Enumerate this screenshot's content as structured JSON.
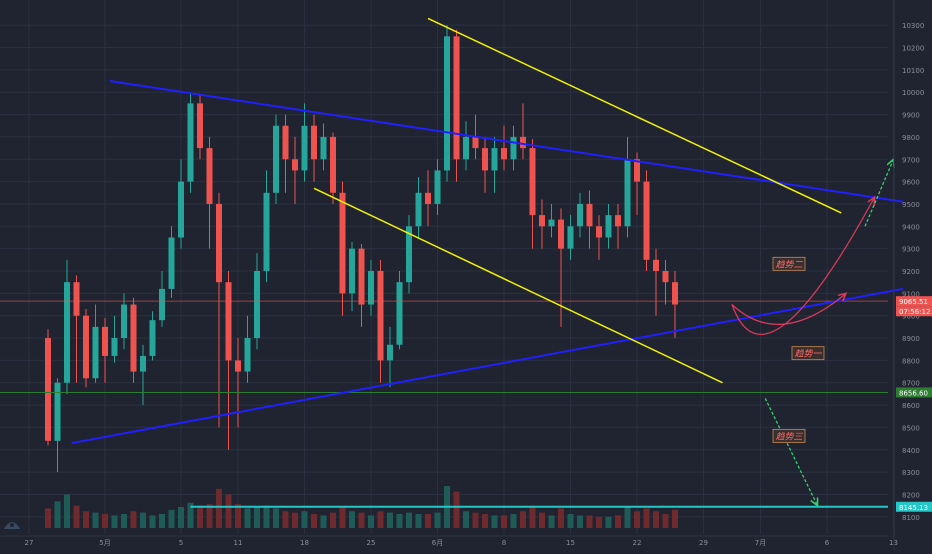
{
  "chart_data": {
    "type": "candlestick",
    "title": "",
    "colors": {
      "background": "#1f2430",
      "grid": "#2b3040",
      "axis_text": "#8a8f9c",
      "up": "#26a69a",
      "down": "#ef5350",
      "volume_up": "#1f5c58",
      "volume_down": "#6e2a2c",
      "blue_trend": "#2020ff",
      "yellow_channel": "#f2f200",
      "green_level": "#2e7d32",
      "cyan_level": "#26c6c6",
      "red_level": "#ef5350",
      "projection_red": "#d63a5a",
      "projection_green": "#32d36a"
    },
    "y_axis": {
      "min": 8050,
      "max": 10350,
      "ticks": [
        10300,
        10200,
        10100,
        10000,
        9900,
        9800,
        9700,
        9600,
        9500,
        9400,
        9300,
        9200,
        9100,
        9000,
        8900,
        8800,
        8700,
        8600,
        8500,
        8400,
        8300,
        8200,
        8100
      ]
    },
    "x_axis": {
      "labels": [
        {
          "label": "27",
          "idx": -2
        },
        {
          "label": "5月",
          "idx": 6
        },
        {
          "label": "5",
          "idx": 14
        },
        {
          "label": "11",
          "idx": 20
        },
        {
          "label": "18",
          "idx": 27
        },
        {
          "label": "25",
          "idx": 34
        },
        {
          "label": "6月",
          "idx": 41
        },
        {
          "label": "8",
          "idx": 48
        },
        {
          "label": "15",
          "idx": 55
        },
        {
          "label": "22",
          "idx": 62
        },
        {
          "label": "29",
          "idx": 69
        },
        {
          "label": "7月",
          "idx": 75
        },
        {
          "label": "6",
          "idx": 82
        },
        {
          "label": "13",
          "idx": 89
        }
      ]
    },
    "price_tags": [
      {
        "label": "9065.51",
        "value": 9065,
        "color": "#ef5350"
      },
      {
        "label": "07:56:12",
        "value": 9020,
        "color": "#ef5350"
      },
      {
        "label": "8656.60",
        "value": 8656.6,
        "color": "#2e7d32"
      },
      {
        "label": "8145.13",
        "value": 8145,
        "color": "#26c6c6"
      }
    ],
    "horizontal_levels": [
      {
        "name": "red",
        "value": 9065
      },
      {
        "name": "green",
        "value": 8656.6
      },
      {
        "name": "cyan",
        "value": 8145,
        "start_idx": 15
      }
    ],
    "trend_lines": [
      {
        "name": "upper-blue",
        "color": "blue",
        "points": [
          [
            6.5,
            10050
          ],
          [
            90,
            9510
          ]
        ]
      },
      {
        "name": "lower-blue",
        "color": "blue",
        "points": [
          [
            2.5,
            8430
          ],
          [
            90,
            9120
          ]
        ]
      },
      {
        "name": "upper-yellow",
        "color": "yellow",
        "points": [
          [
            40,
            10330
          ],
          [
            83.5,
            9460
          ]
        ]
      },
      {
        "name": "lower-yellow",
        "color": "yellow",
        "points": [
          [
            28,
            9570
          ],
          [
            71,
            8700
          ]
        ]
      }
    ],
    "projections": [
      {
        "name": "trend-1",
        "label": "趋势一",
        "color": "red",
        "points": [
          [
            72,
            9050
          ],
          [
            77,
            8850
          ],
          [
            84,
            9100
          ]
        ],
        "label_at": [
          80,
          8830
        ]
      },
      {
        "name": "trend-2",
        "label": "趋势二",
        "color": "red",
        "points": [
          [
            72,
            9050
          ],
          [
            75.5,
            8630
          ],
          [
            87,
            9530
          ]
        ],
        "label_at": [
          78,
          9230
        ]
      },
      {
        "name": "trend-3",
        "label": "趋势三",
        "color": "green",
        "points": [
          [
            75.5,
            8630
          ],
          [
            81,
            8150
          ]
        ],
        "label_at": [
          78,
          8460
        ]
      },
      {
        "name": "trend-4",
        "label": "",
        "color": "green",
        "points": [
          [
            86,
            9400
          ],
          [
            89,
            9700
          ]
        ],
        "label_at": null
      }
    ],
    "candles": [
      [
        8900,
        8440,
        8940,
        8420,
        70
      ],
      [
        8440,
        8700,
        8720,
        8300,
        95
      ],
      [
        8700,
        9150,
        9250,
        8650,
        120
      ],
      [
        9150,
        9000,
        9180,
        8700,
        80
      ],
      [
        9000,
        8720,
        9030,
        8680,
        60
      ],
      [
        8720,
        8950,
        9050,
        8700,
        55
      ],
      [
        8950,
        8820,
        8990,
        8700,
        50
      ],
      [
        8820,
        8900,
        9000,
        8790,
        45
      ],
      [
        8900,
        9050,
        9100,
        8850,
        50
      ],
      [
        9050,
        8750,
        9080,
        8700,
        60
      ],
      [
        8750,
        8820,
        8870,
        8600,
        55
      ],
      [
        8820,
        8980,
        9020,
        8800,
        45
      ],
      [
        8980,
        9120,
        9200,
        8950,
        50
      ],
      [
        9120,
        9350,
        9400,
        9080,
        65
      ],
      [
        9350,
        9600,
        9700,
        9300,
        75
      ],
      [
        9600,
        9950,
        10000,
        9550,
        90
      ],
      [
        9950,
        9750,
        9990,
        9700,
        80
      ],
      [
        9750,
        9500,
        9800,
        9300,
        85
      ],
      [
        9500,
        9150,
        9550,
        8500,
        140
      ],
      [
        9150,
        8800,
        9200,
        8400,
        120
      ],
      [
        8800,
        8750,
        8900,
        8500,
        85
      ],
      [
        8750,
        8900,
        9000,
        8700,
        70
      ],
      [
        8900,
        9200,
        9280,
        8850,
        75
      ],
      [
        9200,
        9550,
        9650,
        9150,
        80
      ],
      [
        9550,
        9850,
        9900,
        9500,
        70
      ],
      [
        9850,
        9700,
        9900,
        9550,
        60
      ],
      [
        9700,
        9650,
        9800,
        9500,
        55
      ],
      [
        9650,
        9850,
        9950,
        9600,
        60
      ],
      [
        9850,
        9700,
        9900,
        9600,
        50
      ],
      [
        9700,
        9800,
        9860,
        9650,
        45
      ],
      [
        9800,
        9550,
        9820,
        9500,
        55
      ],
      [
        9550,
        9100,
        9600,
        9000,
        75
      ],
      [
        9100,
        9300,
        9330,
        9020,
        60
      ],
      [
        9300,
        9050,
        9320,
        8950,
        55
      ],
      [
        9050,
        9200,
        9250,
        9000,
        45
      ],
      [
        9200,
        8800,
        9250,
        8700,
        60
      ],
      [
        8800,
        8870,
        8950,
        8680,
        55
      ],
      [
        8870,
        9150,
        9200,
        8850,
        50
      ],
      [
        9150,
        9400,
        9450,
        9100,
        55
      ],
      [
        9400,
        9550,
        9620,
        9350,
        50
      ],
      [
        9550,
        9500,
        9650,
        9400,
        50
      ],
      [
        9500,
        9650,
        9700,
        9450,
        55
      ],
      [
        9650,
        10250,
        10300,
        9600,
        150
      ],
      [
        10250,
        9700,
        10280,
        9600,
        130
      ],
      [
        9700,
        9800,
        9870,
        9650,
        60
      ],
      [
        9800,
        9750,
        9900,
        9700,
        55
      ],
      [
        9750,
        9650,
        9800,
        9550,
        50
      ],
      [
        9650,
        9750,
        9800,
        9550,
        45
      ],
      [
        9750,
        9700,
        9850,
        9650,
        45
      ],
      [
        9700,
        9800,
        9850,
        9650,
        50
      ],
      [
        9800,
        9750,
        9950,
        9700,
        60
      ],
      [
        9750,
        9450,
        9790,
        9300,
        80
      ],
      [
        9450,
        9400,
        9520,
        9300,
        55
      ],
      [
        9400,
        9430,
        9500,
        9350,
        45
      ],
      [
        9430,
        9300,
        9480,
        8950,
        70
      ],
      [
        9300,
        9400,
        9450,
        9250,
        50
      ],
      [
        9400,
        9500,
        9550,
        9350,
        45
      ],
      [
        9500,
        9400,
        9560,
        9300,
        45
      ],
      [
        9400,
        9350,
        9450,
        9250,
        40
      ],
      [
        9350,
        9450,
        9500,
        9300,
        40
      ],
      [
        9450,
        9400,
        9500,
        9300,
        45
      ],
      [
        9400,
        9700,
        9800,
        9350,
        75
      ],
      [
        9700,
        9600,
        9730,
        9450,
        60
      ],
      [
        9600,
        9250,
        9650,
        9200,
        70
      ],
      [
        9250,
        9200,
        9300,
        9000,
        60
      ],
      [
        9200,
        9150,
        9250,
        9050,
        50
      ],
      [
        9150,
        9050,
        9200,
        8900,
        65
      ]
    ]
  }
}
